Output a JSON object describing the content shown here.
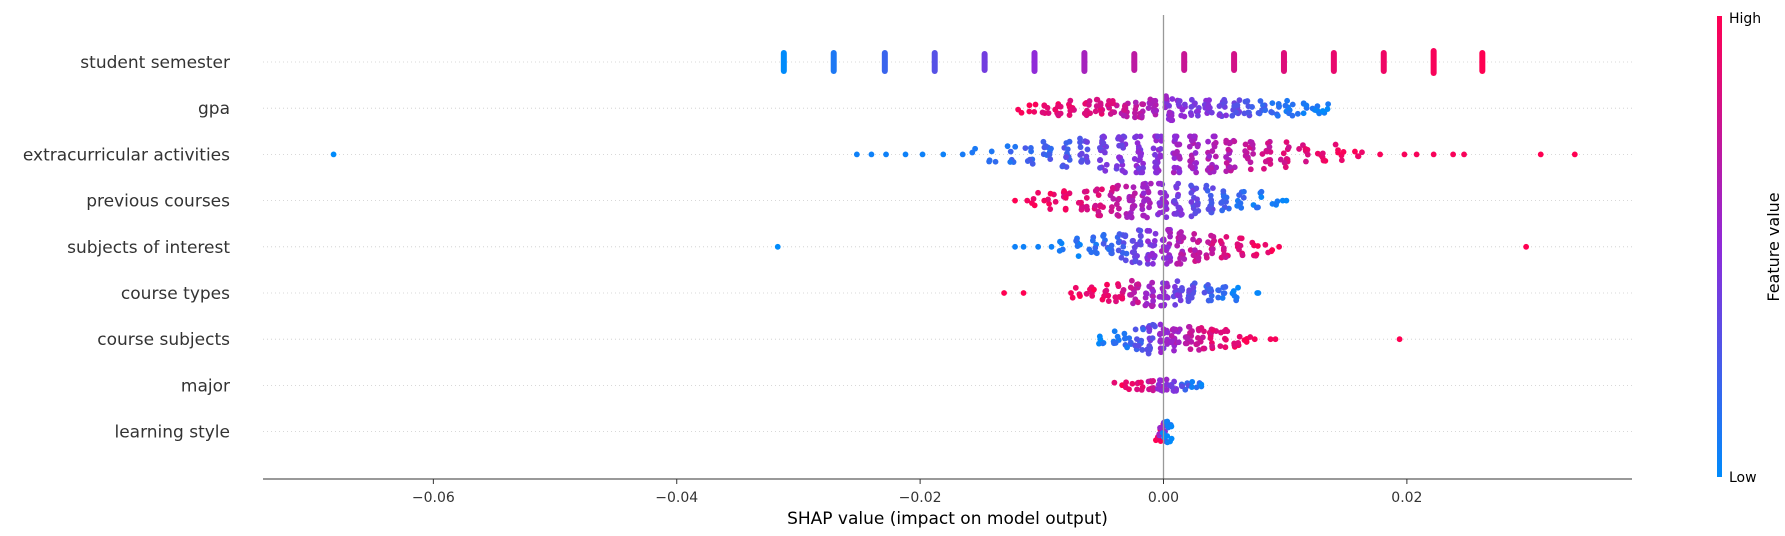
{
  "chart_data": {
    "type": "scatter",
    "subtype": "shap-beeswarm-summary",
    "title": "",
    "xlabel": "SHAP value (impact on model output)",
    "ylabel": "",
    "xlim": [
      -0.074,
      0.0385
    ],
    "xticks": [
      -0.06,
      -0.04,
      -0.02,
      0.0,
      0.02
    ],
    "xtick_labels": [
      "−0.06",
      "−0.04",
      "−0.02",
      "0.00",
      "0.02"
    ],
    "zero_line": 0.0,
    "grid": "dotted horizontal row lines",
    "legend": {
      "type": "colorbar",
      "placement": "right",
      "title": "Feature value",
      "high_label": "High",
      "low_label": "Low",
      "high_color": "#ff0052",
      "mid_color": "#8f2ad8",
      "low_color": "#008bfb"
    },
    "features": [
      {
        "name": "student semester",
        "style": "discrete-bars",
        "levels": [
          {
            "x": -0.0312,
            "value": 0.0,
            "count": 12
          },
          {
            "x": -0.0271,
            "value": 0.1,
            "count": 12
          },
          {
            "x": -0.0229,
            "value": 0.2,
            "count": 12
          },
          {
            "x": -0.0188,
            "value": 0.3,
            "count": 12
          },
          {
            "x": -0.0147,
            "value": 0.4,
            "count": 10
          },
          {
            "x": -0.0106,
            "value": 0.5,
            "count": 12
          },
          {
            "x": -0.0065,
            "value": 0.6,
            "count": 12
          },
          {
            "x": -0.0024,
            "value": 0.7,
            "count": 10
          },
          {
            "x": 0.0017,
            "value": 0.75,
            "count": 10
          },
          {
            "x": 0.0058,
            "value": 0.8,
            "count": 10
          },
          {
            "x": 0.0099,
            "value": 0.85,
            "count": 12
          },
          {
            "x": 0.014,
            "value": 0.9,
            "count": 12
          },
          {
            "x": 0.0181,
            "value": 0.93,
            "count": 12
          },
          {
            "x": 0.0222,
            "value": 0.97,
            "count": 16
          },
          {
            "x": 0.0262,
            "value": 1.0,
            "count": 12
          }
        ]
      },
      {
        "name": "gpa",
        "style": "swarm",
        "spread": 12,
        "bins": [
          [
            -0.0118,
            0.95,
            1
          ],
          [
            -0.0108,
            0.95,
            2
          ],
          [
            -0.0097,
            0.9,
            3
          ],
          [
            -0.0086,
            0.9,
            4
          ],
          [
            -0.0075,
            0.88,
            4
          ],
          [
            -0.0064,
            0.85,
            5
          ],
          [
            -0.0053,
            0.82,
            5
          ],
          [
            -0.0042,
            0.78,
            6
          ],
          [
            -0.0031,
            0.72,
            6
          ],
          [
            -0.002,
            0.68,
            6
          ],
          [
            -0.0009,
            0.62,
            6
          ],
          [
            0.0005,
            0.5,
            9
          ],
          [
            0.0015,
            0.48,
            5
          ],
          [
            0.0026,
            0.45,
            5
          ],
          [
            0.0037,
            0.42,
            5
          ],
          [
            0.0048,
            0.38,
            5
          ],
          [
            0.0059,
            0.35,
            5
          ],
          [
            0.007,
            0.28,
            4
          ],
          [
            0.0081,
            0.22,
            4
          ],
          [
            0.0092,
            0.15,
            4
          ],
          [
            0.0103,
            0.1,
            4
          ],
          [
            0.0114,
            0.06,
            3
          ],
          [
            0.0125,
            0.04,
            3
          ],
          [
            0.0134,
            0.02,
            2
          ]
        ],
        "outliers": []
      },
      {
        "name": "extracurricular activities",
        "style": "swarm",
        "spread": 18,
        "bins": [
          [
            -0.0155,
            0.1,
            1
          ],
          [
            -0.014,
            0.12,
            2
          ],
          [
            -0.0125,
            0.15,
            3
          ],
          [
            -0.011,
            0.18,
            4
          ],
          [
            -0.0095,
            0.22,
            5
          ],
          [
            -0.008,
            0.28,
            6
          ],
          [
            -0.0065,
            0.33,
            7
          ],
          [
            -0.005,
            0.38,
            9
          ],
          [
            -0.0035,
            0.42,
            10
          ],
          [
            -0.002,
            0.46,
            11
          ],
          [
            -0.0005,
            0.5,
            12
          ],
          [
            0.001,
            0.54,
            12
          ],
          [
            0.0025,
            0.58,
            11
          ],
          [
            0.004,
            0.62,
            10
          ],
          [
            0.0055,
            0.66,
            9
          ],
          [
            0.007,
            0.72,
            7
          ],
          [
            0.0085,
            0.78,
            6
          ],
          [
            0.01,
            0.82,
            5
          ],
          [
            0.0115,
            0.86,
            4
          ],
          [
            0.013,
            0.9,
            3
          ],
          [
            0.0145,
            0.93,
            3
          ],
          [
            0.016,
            0.95,
            2
          ]
        ],
        "outliers": [
          [
            -0.0682,
            0.0
          ],
          [
            -0.0252,
            0.05
          ],
          [
            -0.024,
            0.05
          ],
          [
            -0.0228,
            0.05
          ],
          [
            -0.0212,
            0.05
          ],
          [
            -0.0198,
            0.05
          ],
          [
            -0.0181,
            0.05
          ],
          [
            -0.0165,
            0.08
          ],
          [
            0.0178,
            0.97
          ],
          [
            0.0198,
            0.97
          ],
          [
            0.0208,
            0.97
          ],
          [
            0.0222,
            0.97
          ],
          [
            0.0238,
            0.97
          ],
          [
            0.0247,
            0.97
          ],
          [
            0.031,
            1.0
          ],
          [
            0.0338,
            1.0
          ]
        ]
      },
      {
        "name": "previous courses",
        "style": "swarm",
        "spread": 17,
        "bins": [
          [
            -0.0105,
            0.95,
            2
          ],
          [
            -0.0092,
            0.92,
            3
          ],
          [
            -0.0079,
            0.9,
            4
          ],
          [
            -0.0066,
            0.88,
            5
          ],
          [
            -0.0053,
            0.82,
            7
          ],
          [
            -0.004,
            0.75,
            8
          ],
          [
            -0.0027,
            0.65,
            9
          ],
          [
            -0.0014,
            0.58,
            10
          ],
          [
            -0.0001,
            0.5,
            10
          ],
          [
            0.0012,
            0.42,
            9
          ],
          [
            0.0025,
            0.35,
            8
          ],
          [
            0.0038,
            0.28,
            7
          ],
          [
            0.0051,
            0.22,
            5
          ],
          [
            0.0064,
            0.15,
            4
          ],
          [
            0.0077,
            0.1,
            3
          ],
          [
            0.009,
            0.06,
            2
          ]
        ],
        "outliers": [
          [
            -0.0122,
            1.0
          ],
          [
            -0.0112,
            0.95
          ],
          [
            -0.0098,
            0.95
          ],
          [
            0.0098,
            0.02
          ],
          [
            0.0101,
            0.02
          ]
        ]
      },
      {
        "name": "subjects of interest",
        "style": "swarm",
        "spread": 17,
        "bins": [
          [
            -0.0082,
            0.08,
            2
          ],
          [
            -0.007,
            0.1,
            3
          ],
          [
            -0.0058,
            0.12,
            4
          ],
          [
            -0.0046,
            0.18,
            5
          ],
          [
            -0.0034,
            0.25,
            7
          ],
          [
            -0.0022,
            0.35,
            9
          ],
          [
            -0.001,
            0.45,
            10
          ],
          [
            0.0002,
            0.55,
            10
          ],
          [
            0.0014,
            0.65,
            9
          ],
          [
            0.0026,
            0.72,
            7
          ],
          [
            0.0038,
            0.78,
            6
          ],
          [
            0.005,
            0.84,
            5
          ],
          [
            0.0062,
            0.88,
            4
          ],
          [
            0.0074,
            0.92,
            3
          ],
          [
            0.0086,
            0.95,
            2
          ]
        ],
        "outliers": [
          [
            -0.0317,
            0.0
          ],
          [
            -0.0122,
            0.05
          ],
          [
            -0.0115,
            0.05
          ],
          [
            -0.0103,
            0.05
          ],
          [
            -0.0092,
            0.05
          ],
          [
            0.0095,
            0.97
          ],
          [
            0.0298,
            1.0
          ]
        ]
      },
      {
        "name": "course types",
        "style": "swarm",
        "spread": 14,
        "bins": [
          [
            -0.0072,
            0.95,
            2
          ],
          [
            -0.006,
            0.93,
            3
          ],
          [
            -0.0048,
            0.9,
            4
          ],
          [
            -0.0036,
            0.85,
            5
          ],
          [
            -0.0024,
            0.72,
            7
          ],
          [
            -0.0012,
            0.6,
            8
          ],
          [
            0.0,
            0.5,
            8
          ],
          [
            0.0012,
            0.4,
            7
          ],
          [
            0.0024,
            0.3,
            6
          ],
          [
            0.0036,
            0.22,
            5
          ],
          [
            0.0048,
            0.15,
            4
          ],
          [
            0.006,
            0.08,
            3
          ]
        ],
        "outliers": [
          [
            -0.0131,
            1.0
          ],
          [
            -0.0115,
            1.0
          ],
          [
            -0.0076,
            0.95
          ],
          [
            0.0077,
            0.02
          ],
          [
            0.0078,
            0.02
          ]
        ]
      },
      {
        "name": "course subjects",
        "style": "swarm",
        "spread": 15,
        "bins": [
          [
            -0.005,
            0.05,
            2
          ],
          [
            -0.004,
            0.08,
            3
          ],
          [
            -0.003,
            0.15,
            4
          ],
          [
            -0.002,
            0.25,
            6
          ],
          [
            -0.001,
            0.35,
            8
          ],
          [
            0.0,
            0.5,
            9
          ],
          [
            0.001,
            0.6,
            8
          ],
          [
            0.002,
            0.7,
            7
          ],
          [
            0.003,
            0.78,
            6
          ],
          [
            0.004,
            0.84,
            5
          ],
          [
            0.005,
            0.88,
            4
          ],
          [
            0.006,
            0.92,
            3
          ],
          [
            0.007,
            0.95,
            2
          ]
        ],
        "outliers": [
          [
            -0.0052,
            0.0
          ],
          [
            0.0075,
            0.97
          ],
          [
            0.0088,
            0.97
          ],
          [
            0.0092,
            0.97
          ],
          [
            0.0194,
            1.0
          ]
        ]
      },
      {
        "name": "major",
        "style": "swarm",
        "spread": 9,
        "bins": [
          [
            -0.0037,
            0.95,
            1
          ],
          [
            -0.0028,
            0.9,
            2
          ],
          [
            -0.0019,
            0.85,
            3
          ],
          [
            -0.001,
            0.75,
            4
          ],
          [
            -0.0001,
            0.55,
            6
          ],
          [
            0.0008,
            0.4,
            4
          ],
          [
            0.0017,
            0.25,
            3
          ],
          [
            0.0026,
            0.12,
            2
          ],
          [
            0.0033,
            0.05,
            1
          ]
        ],
        "outliers": []
      },
      {
        "name": "learning style",
        "style": "swarm",
        "spread": 14,
        "bins": [
          [
            -0.0003,
            0.95,
            6
          ],
          [
            0.0,
            0.5,
            5
          ],
          [
            0.0003,
            0.05,
            6
          ]
        ],
        "outliers": []
      }
    ]
  }
}
